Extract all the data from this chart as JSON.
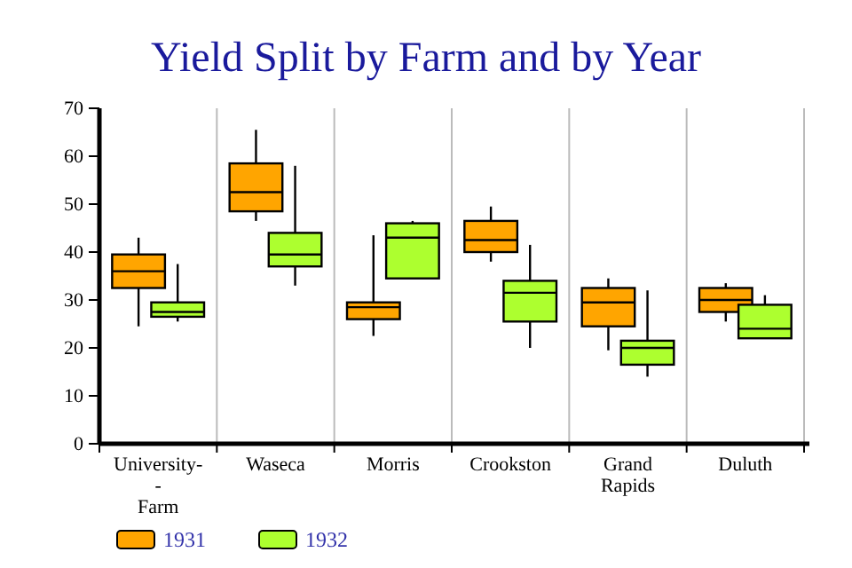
{
  "chart_data": {
    "type": "box",
    "title": "Yield Split by Farm and by Year",
    "categories": [
      "University-\n-\nFarm",
      "Waseca",
      "Morris",
      "Crookston",
      "Grand\nRapids",
      "Duluth"
    ],
    "ylim": [
      0,
      70
    ],
    "yticks": [
      0,
      10,
      20,
      30,
      40,
      50,
      60,
      70
    ],
    "grid": "x",
    "legend": "bottom left",
    "series": [
      {
        "name": "1931",
        "color": "#ffa500",
        "boxes": [
          {
            "low": 24.5,
            "q1": 32.5,
            "median": 36,
            "q3": 39.5,
            "high": 43
          },
          {
            "low": 46.5,
            "q1": 48.5,
            "median": 52.5,
            "q3": 58.5,
            "high": 65.5
          },
          {
            "low": 22.5,
            "q1": 26,
            "median": 28.5,
            "q3": 29.5,
            "high": 43.5
          },
          {
            "low": 38,
            "q1": 40,
            "median": 42.5,
            "q3": 46.5,
            "high": 49.5
          },
          {
            "low": 19.5,
            "q1": 24.5,
            "median": 29.5,
            "q3": 32.5,
            "high": 34.5
          },
          {
            "low": 25.5,
            "q1": 27.5,
            "median": 30,
            "q3": 32.5,
            "high": 33.5
          }
        ]
      },
      {
        "name": "1932",
        "color": "#adff2f",
        "boxes": [
          {
            "low": 25.5,
            "q1": 26.5,
            "median": 27.5,
            "q3": 29.5,
            "high": 37.5
          },
          {
            "low": 33,
            "q1": 37,
            "median": 39.5,
            "q3": 44,
            "high": 58
          },
          {
            "low": 34.5,
            "q1": 34.5,
            "median": 43,
            "q3": 46,
            "high": 46.5
          },
          {
            "low": 20,
            "q1": 25.5,
            "median": 31.5,
            "q3": 34,
            "high": 41.5
          },
          {
            "low": 14,
            "q1": 16.5,
            "median": 20,
            "q3": 21.5,
            "high": 32
          },
          {
            "low": 22,
            "q1": 22,
            "median": 24,
            "q3": 29,
            "high": 31
          }
        ]
      }
    ]
  }
}
